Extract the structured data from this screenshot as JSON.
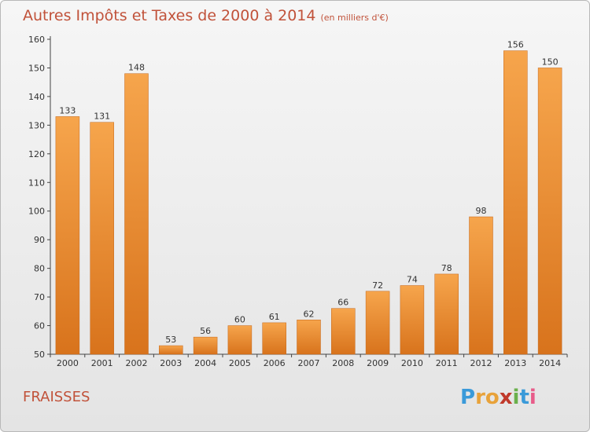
{
  "header": {
    "title": "Autres Impôts et Taxes de 2000 à 2014",
    "unit": "(en milliers d'€)"
  },
  "footer": {
    "place": "FRAISSES",
    "logo_letters": [
      "P",
      "r",
      "o",
      "x",
      "i",
      "t",
      "i"
    ],
    "logo_colors": [
      "#3a9ad9",
      "#e8a23a",
      "#e8a23a",
      "#c0392b",
      "#6ab04c",
      "#3a9ad9",
      "#e85c8a"
    ]
  },
  "colors": {
    "bar_top": "#f6a54c",
    "bar_bottom": "#d8731c",
    "bar_edge": "#c4661a",
    "text_accent": "#c1523a"
  },
  "chart_data": {
    "type": "bar",
    "title": "Autres Impôts et Taxes de 2000 à 2014",
    "xlabel": "",
    "ylabel": "",
    "categories": [
      "2000",
      "2001",
      "2002",
      "2003",
      "2004",
      "2005",
      "2006",
      "2007",
      "2008",
      "2009",
      "2010",
      "2011",
      "2012",
      "2013",
      "2014"
    ],
    "values": [
      133,
      131,
      148,
      53,
      56,
      60,
      61,
      62,
      66,
      72,
      74,
      78,
      98,
      156,
      150
    ],
    "ylim": [
      50,
      160
    ],
    "yticks": [
      50,
      60,
      70,
      80,
      90,
      100,
      110,
      120,
      130,
      140,
      150,
      160
    ],
    "grid": false,
    "legend": "none"
  }
}
